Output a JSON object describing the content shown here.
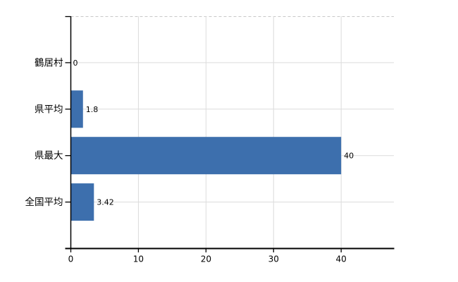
{
  "chart": {
    "bar_color": "#3d6fad",
    "grid_color": "#dcdcdc",
    "top_border_color": "#c9c9c9",
    "axis_color": "#000000",
    "text_color": "#000000",
    "background": "#ffffff"
  },
  "chart_data": {
    "type": "bar",
    "orientation": "horizontal",
    "title": "",
    "xlabel": "",
    "ylabel": "",
    "categories": [
      "鶴居村",
      "県平均",
      "県最大",
      "全国平均"
    ],
    "values": [
      0,
      1.8,
      40,
      3.42
    ],
    "value_labels": [
      "0",
      "1.8",
      "40",
      "3.42"
    ],
    "x_ticks": [
      0,
      10,
      20,
      30,
      40
    ],
    "x_tick_labels": [
      "0",
      "10",
      "20",
      "30",
      "40"
    ],
    "xlim": [
      0,
      47.8
    ],
    "grid": true,
    "legend": false
  }
}
